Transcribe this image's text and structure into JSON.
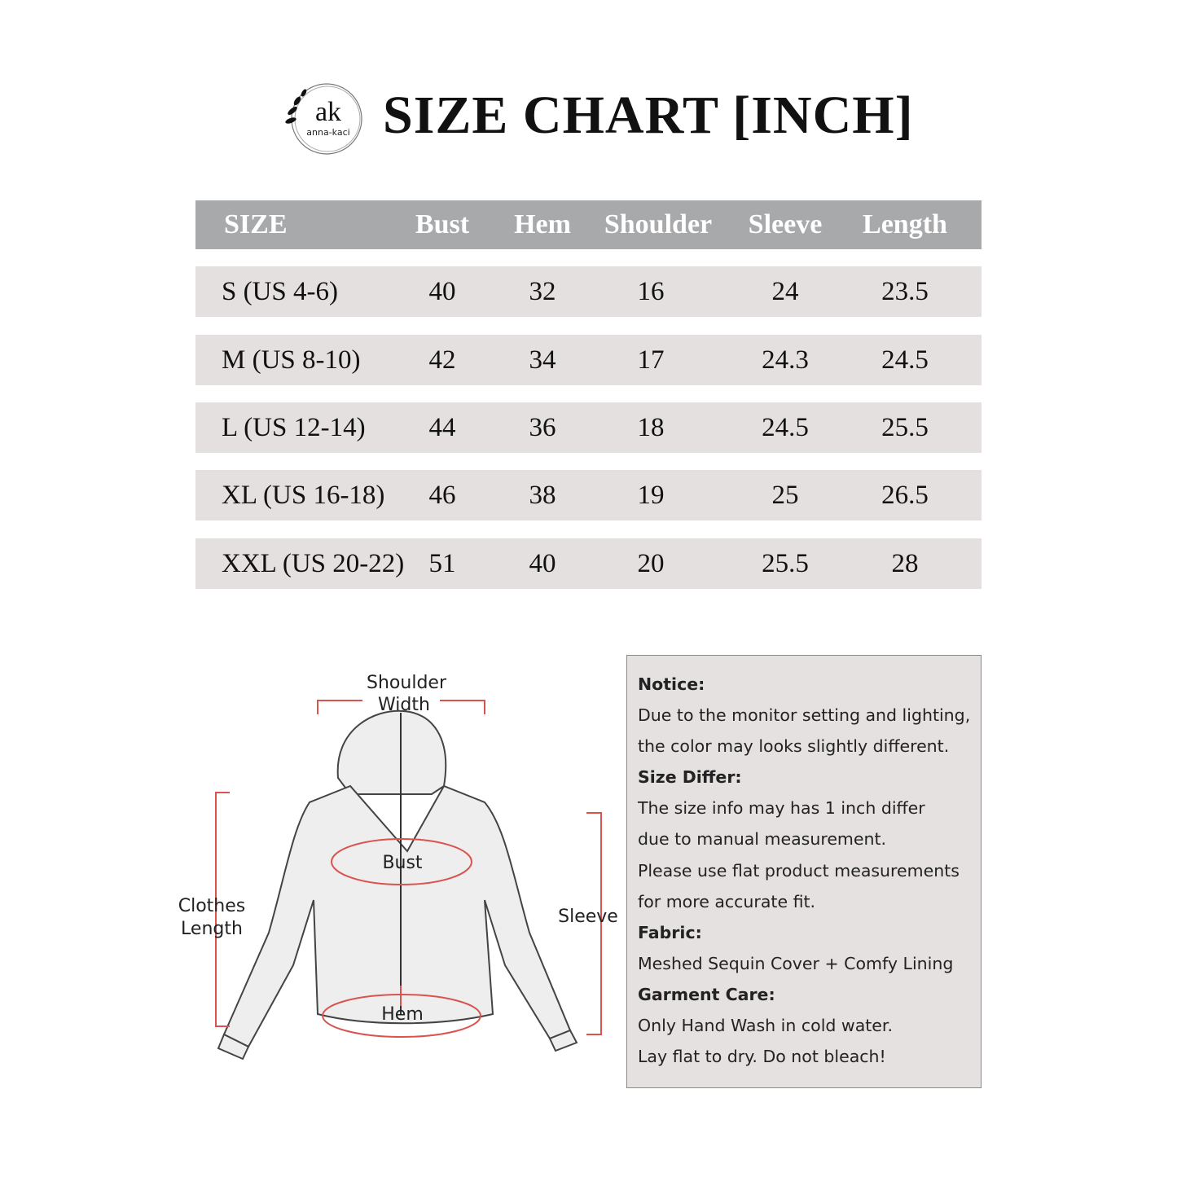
{
  "brand": {
    "logo_monogram": "ak",
    "logo_text": "anna-kaci"
  },
  "title": "SIZE CHART [INCH]",
  "table": {
    "headers": [
      "SIZE",
      "Bust",
      "Hem",
      "Shoulder",
      "Sleeve",
      "Length"
    ],
    "rows": [
      [
        "S (US 4-6)",
        "40",
        "32",
        "16",
        "24",
        "23.5"
      ],
      [
        "M (US 8-10)",
        "42",
        "34",
        "17",
        "24.3",
        "24.5"
      ],
      [
        "L (US 12-14)",
        "44",
        "36",
        "18",
        "24.5",
        "25.5"
      ],
      [
        "XL (US 16-18)",
        "46",
        "38",
        "19",
        "25",
        "26.5"
      ],
      [
        "XXL (US 20-22)",
        "51",
        "40",
        "20",
        "25.5",
        "28"
      ]
    ]
  },
  "diagram": {
    "shoulder_1": "Shoulder",
    "shoulder_2": "Width",
    "bust": "Bust",
    "hem": "Hem",
    "length_1": "Clothes",
    "length_2": "Length",
    "sleeve": "Sleeve",
    "marker_color": "#d9534f"
  },
  "notice": {
    "lines": [
      {
        "text": "Notice:",
        "heading": true
      },
      {
        "text": "Due to the monitor setting and lighting,"
      },
      {
        "text": "the color may looks slightly different."
      },
      {
        "text": "Size Differ:",
        "heading": true
      },
      {
        "text": "The size info may has 1 inch differ"
      },
      {
        "text": "due to manual measurement."
      },
      {
        "text": "Please use flat product measurements"
      },
      {
        "text": "for more accurate fit."
      },
      {
        "text": "Fabric:",
        "heading": true
      },
      {
        "text": "Meshed Sequin Cover + Comfy Lining"
      },
      {
        "text": "Garment Care:",
        "heading": true
      },
      {
        "text": "Only Hand Wash in cold water."
      },
      {
        "text": "Lay flat to dry. Do not bleach!"
      }
    ]
  }
}
